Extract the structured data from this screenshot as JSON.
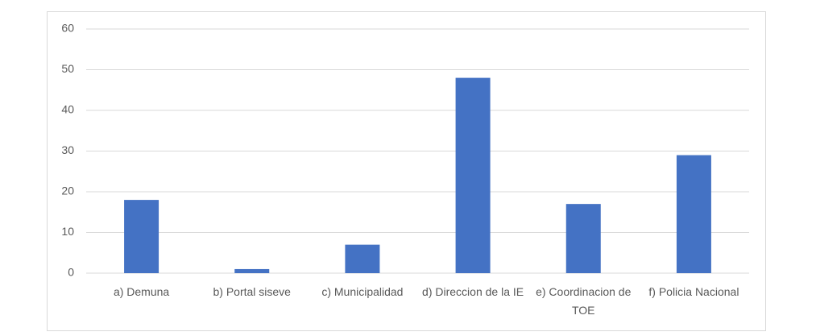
{
  "chart_data": {
    "type": "bar",
    "categories": [
      "a) Demuna",
      "b) Portal siseve",
      "c) Municipalidad",
      "d) Direccion de la IE",
      "e) Coordinacion de TOE",
      "f) Policia Nacional"
    ],
    "values": [
      18,
      1,
      7,
      48,
      17,
      29
    ],
    "color": "#4472c4",
    "ylim": [
      0,
      60
    ],
    "yticks": [
      0,
      10,
      20,
      30,
      40,
      50,
      60
    ],
    "grid": true
  }
}
